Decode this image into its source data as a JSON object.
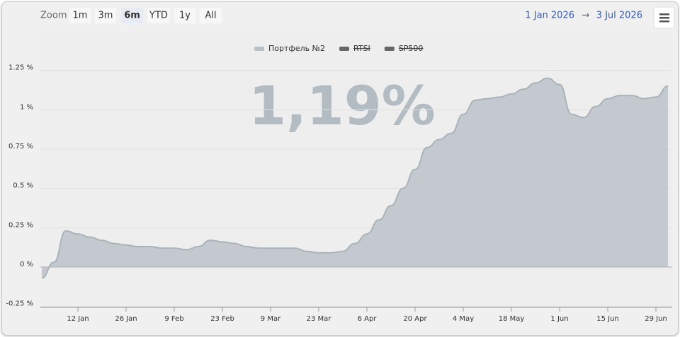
{
  "chart_data": {
    "type": "area",
    "annotation": "1,19%",
    "range_selector": {
      "label": "Zoom",
      "buttons": [
        "1m",
        "3m",
        "6m",
        "YTD",
        "1y",
        "All"
      ],
      "selected": 2,
      "from": "1 Jan 2026",
      "separator": "→",
      "to": "3 Jul 2026"
    },
    "categories": [
      null,
      null,
      null,
      "12 Jan",
      null,
      null,
      null,
      "26 Jan",
      null,
      null,
      null,
      "9 Feb",
      null,
      null,
      null,
      "23 Feb",
      null,
      null,
      null,
      "9 Mar",
      null,
      null,
      null,
      "23 Mar",
      null,
      null,
      null,
      "6 Apr",
      null,
      null,
      null,
      "20 Apr",
      null,
      null,
      null,
      "4 May",
      null,
      null,
      null,
      "18 May",
      null,
      null,
      null,
      "1 Jun",
      null,
      null,
      null,
      "15 Jun",
      null,
      null,
      null,
      "29 Jun",
      null
    ],
    "series": [
      {
        "name": "Портфель №2",
        "color": "#c3c9ce",
        "line_color": "#a9b3ba",
        "visible": true,
        "values": [
          -0.07,
          0.03,
          0.23,
          0.21,
          0.19,
          0.17,
          0.15,
          0.14,
          0.13,
          0.13,
          0.12,
          0.12,
          0.11,
          0.13,
          0.17,
          0.16,
          0.15,
          0.13,
          0.12,
          0.12,
          0.12,
          0.12,
          0.1,
          0.09,
          0.09,
          0.1,
          0.15,
          0.21,
          0.3,
          0.39,
          0.5,
          0.62,
          0.76,
          0.81,
          0.85,
          0.97,
          1.06,
          1.07,
          1.08,
          1.1,
          1.13,
          1.17,
          1.2,
          1.16,
          0.97,
          0.95,
          1.02,
          1.07,
          1.09,
          1.09,
          1.07,
          1.08,
          1.15
        ]
      },
      {
        "name": "RTSI",
        "color": "#666666",
        "visible": false
      },
      {
        "name": "SP500",
        "color": "#666666",
        "visible": false
      }
    ],
    "ylim": [
      -0.256,
      1.495
    ],
    "yticks": [
      {
        "value": -0.25,
        "label": "-0.25 %"
      },
      {
        "value": 0,
        "label": "0 %"
      },
      {
        "value": 0.25,
        "label": "0.25 %"
      },
      {
        "value": 0.5,
        "label": "0.5 %"
      },
      {
        "value": 0.75,
        "label": "0.75 %"
      },
      {
        "value": 1,
        "label": "1 %"
      },
      {
        "value": 1.25,
        "label": "1.25 %"
      }
    ],
    "grid": true,
    "legend": "top"
  }
}
